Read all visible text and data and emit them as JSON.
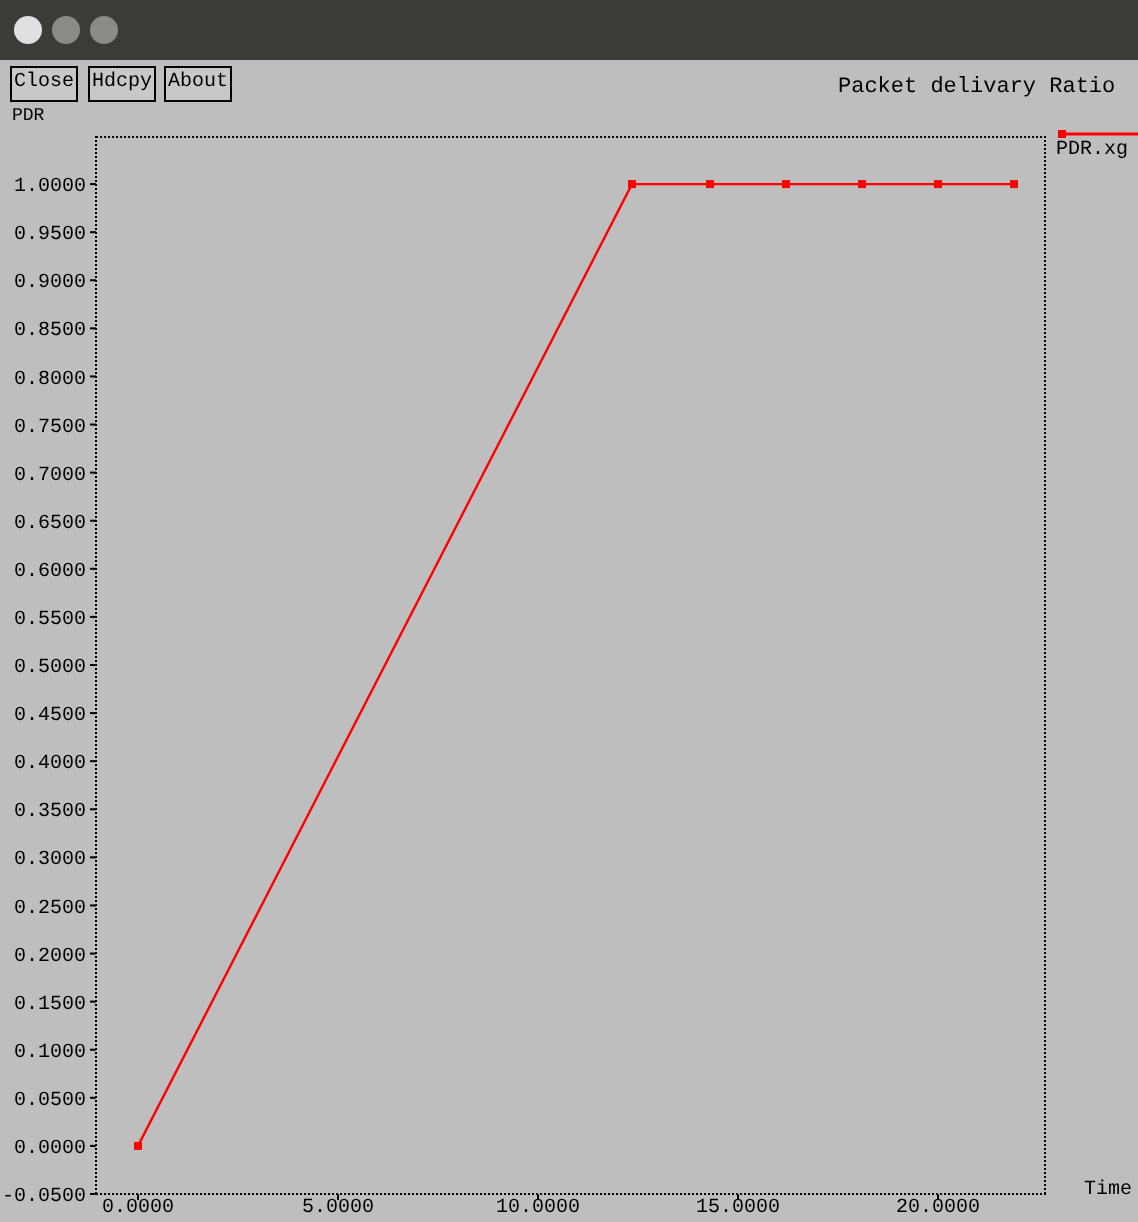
{
  "chart_data": {
    "type": "line",
    "title": "Packet delivary Ratio",
    "xlabel": "Time",
    "ylabel": "PDR",
    "annotations": [
      "Close",
      "Hdcpy",
      "About"
    ],
    "x": [
      0,
      12.35,
      14.3,
      16.2,
      18.1,
      20.0,
      21.9
    ],
    "series": [
      {
        "name": "PDR.xg",
        "color": "#ff0000",
        "values": [
          0,
          1,
          1,
          1,
          1,
          1,
          1
        ]
      }
    ],
    "xlim": [
      -1.05,
      22.7
    ],
    "xticks": [
      {
        "value": 0,
        "label": "0.0000"
      },
      {
        "value": 5,
        "label": "5.0000"
      },
      {
        "value": 10,
        "label": "10.0000"
      },
      {
        "value": 15,
        "label": "15.0000"
      },
      {
        "value": 20,
        "label": "20.0000"
      }
    ],
    "ylim": [
      -0.05,
      1.05
    ],
    "yticks": [
      {
        "value": -0.05,
        "label": "-0.0500"
      },
      {
        "value": 0,
        "label": "0.0000"
      },
      {
        "value": 0.05,
        "label": "0.0500"
      },
      {
        "value": 0.1,
        "label": "0.1000"
      },
      {
        "value": 0.15,
        "label": "0.1500"
      },
      {
        "value": 0.2,
        "label": "0.2000"
      },
      {
        "value": 0.25,
        "label": "0.2500"
      },
      {
        "value": 0.3,
        "label": "0.3000"
      },
      {
        "value": 0.35,
        "label": "0.3500"
      },
      {
        "value": 0.4,
        "label": "0.4000"
      },
      {
        "value": 0.45,
        "label": "0.4500"
      },
      {
        "value": 0.5,
        "label": "0.5000"
      },
      {
        "value": 0.55,
        "label": "0.5500"
      },
      {
        "value": 0.6,
        "label": "0.6000"
      },
      {
        "value": 0.65,
        "label": "0.6500"
      },
      {
        "value": 0.7,
        "label": "0.7000"
      },
      {
        "value": 0.75,
        "label": "0.7500"
      },
      {
        "value": 0.8,
        "label": "0.8000"
      },
      {
        "value": 0.85,
        "label": "0.8500"
      },
      {
        "value": 0.9,
        "label": "0.9000"
      },
      {
        "value": 0.95,
        "label": "0.9500"
      },
      {
        "value": 1,
        "label": "1.0000"
      }
    ],
    "grid": false,
    "legend": "top right",
    "marker": "square",
    "line_style": "solid"
  }
}
